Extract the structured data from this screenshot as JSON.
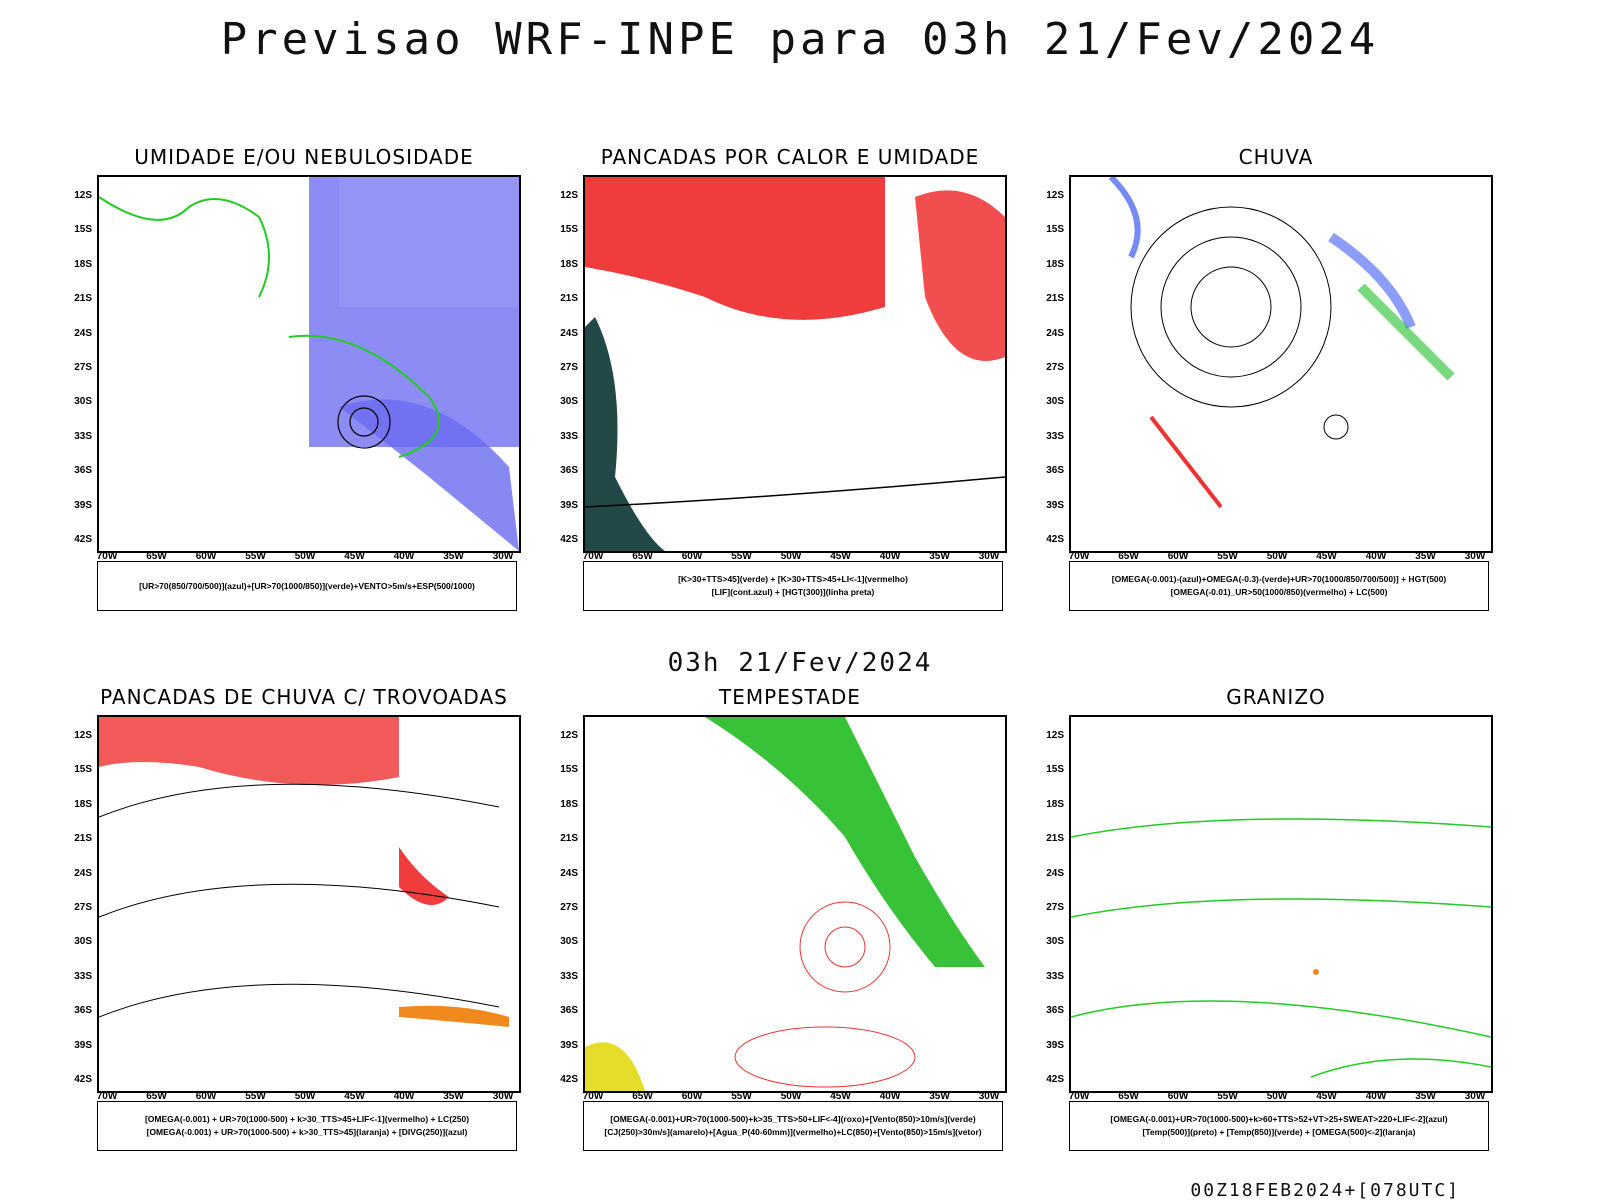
{
  "title": "Previsao WRF-INPE  para 03h 21/Fev/2024",
  "mid_title": "03h 21/Fev/2024",
  "footer": "00Z18FEB2024+[078UTC]",
  "axes": {
    "lat_labels": [
      "12S",
      "15S",
      "18S",
      "21S",
      "24S",
      "27S",
      "30S",
      "33S",
      "36S",
      "39S",
      "42S"
    ],
    "lon_labels": [
      "70W",
      "65W",
      "60W",
      "55W",
      "50W",
      "45W",
      "40W",
      "35W",
      "30W"
    ]
  },
  "panels": [
    {
      "title": "UMIDADE E/OU NEBULOSIDADE",
      "legend": [
        "[UR>70(850/700/500)](azul)+[UR>70(1000/850)](verde)+VENTO>5m/s+ESP(500/1000)"
      ],
      "colors": {
        "primary": "#5b5bef",
        "secondary": "#22cc22",
        "accent": "#ff3333"
      }
    },
    {
      "title": "PANCADAS POR CALOR E UMIDADE",
      "legend": [
        "[K>30+TTS>45](verde) + [K>30+TTS>45+LI<-1](vermelho)",
        "[LIF](cont.azul) + [HGT(300)](linha preta)"
      ],
      "colors": {
        "primary": "#f03c3c",
        "secondary": "#234848",
        "accent": "#3a4cf0"
      }
    },
    {
      "title": "CHUVA",
      "legend": [
        "[OMEGA(-0.001)-(azul)+OMEGA(-0.3)-(verde)+UR>70(1000/850/700/500)] + HGT(500)",
        "[OMEGA(-0.01)_UR>50(1000/850)(vermelho) + LC(500)"
      ],
      "colors": {
        "primary": "#1a3cf0",
        "secondary": "#1fbf2a",
        "accent": "#ee3333"
      }
    },
    {
      "title": "PANCADAS DE CHUVA C/ TROVOADAS",
      "legend": [
        "[OMEGA(-0.001) + UR>70(1000-500) + k>30_TTS>45+LIF<-1](vermelho) + LC(250)",
        "[OMEGA(-0.001) + UR>70(1000-500) + k>30_TTS>45](laranja) + [DIVG(250)](azul)"
      ],
      "colors": {
        "primary": "#f03c3c",
        "secondary": "#f08a1e",
        "accent": "#3a4cf0"
      }
    },
    {
      "title": "TEMPESTADE",
      "legend": [
        "[OMEGA(-0.001)+UR>70(1000-500)+k>35_TTS>50+LIF<-4](roxo)+[Vento(850)>10m/s](verde)",
        "[CJ(250)>30m/s](amarelo)+[Agua_P(40-60mm)](vermelho)+LC(850)+[Vento(850)>15m/s](vetor)"
      ],
      "colors": {
        "primary": "#ee3333",
        "secondary": "#22bb22",
        "accent": "#e6dc2a"
      }
    },
    {
      "title": "GRANIZO",
      "legend": [
        "[OMEGA(-0.001)+UR>70(1000-500)+k>60+TTS>52+VT>25+SWEAT>220+LIF<-2](azul)",
        "[Temp(500)](preto) + [Temp(850)](verde) + [OMEGA(500)<-2](laranja)"
      ],
      "colors": {
        "primary": "#22cc22",
        "secondary": "#f08a1e",
        "accent": "#1a3cf0"
      }
    }
  ]
}
